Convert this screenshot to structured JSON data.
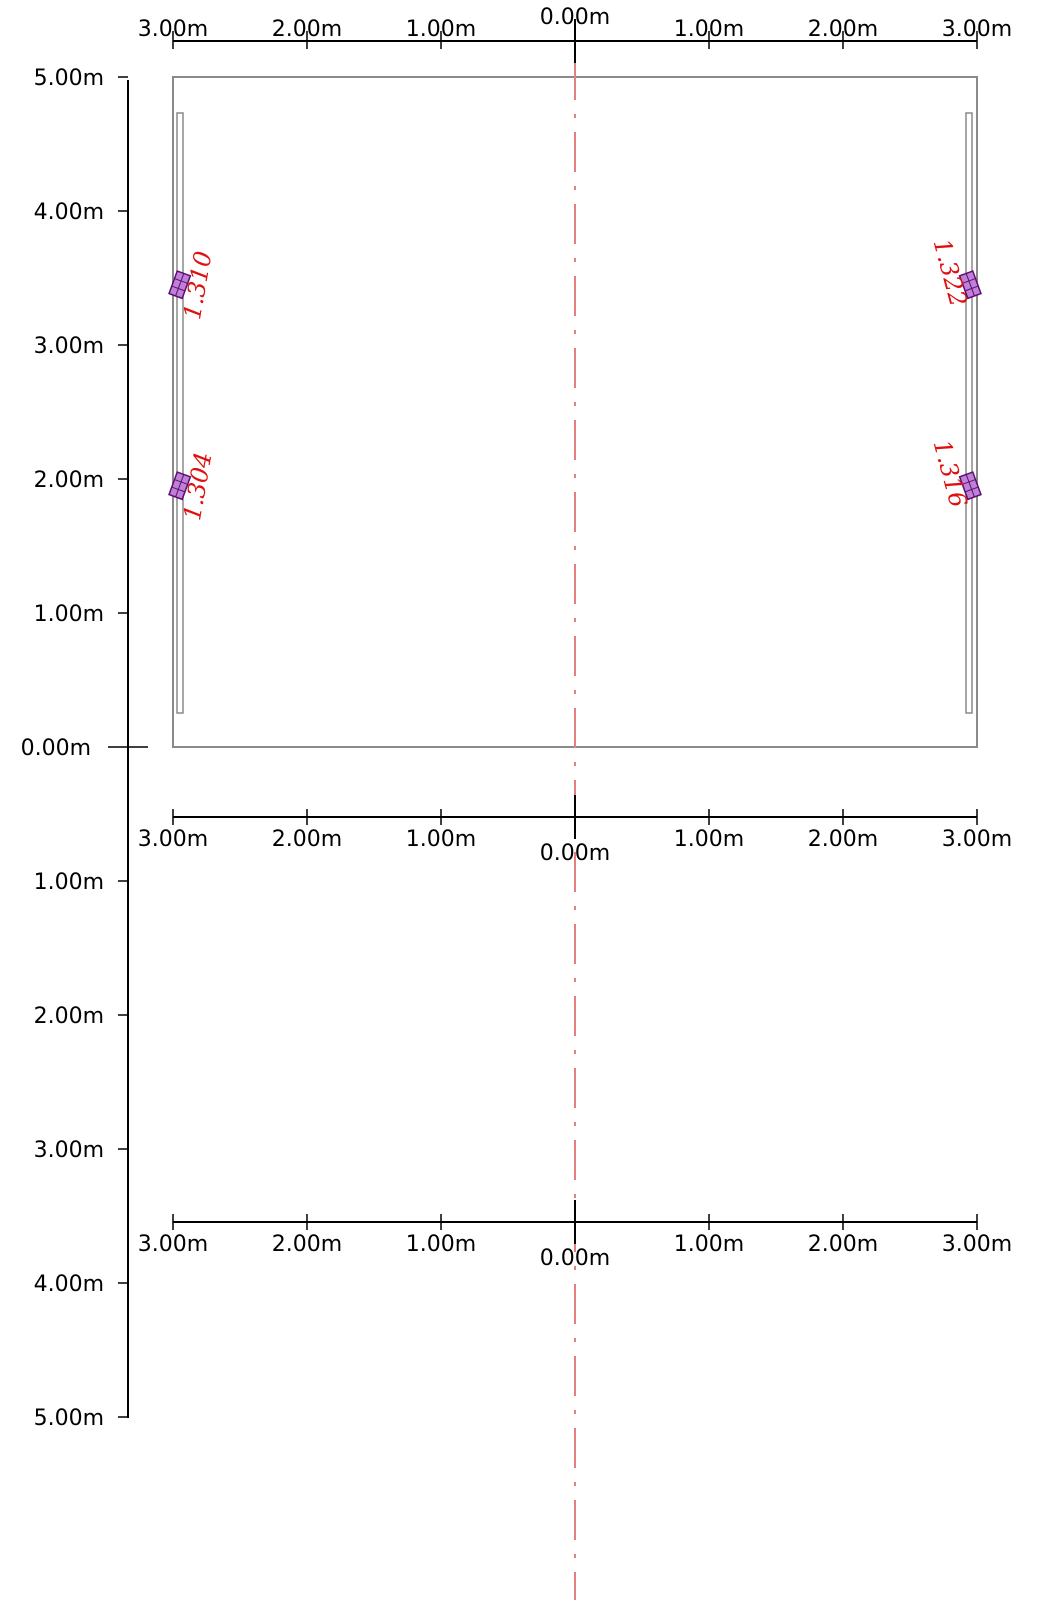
{
  "units": "m",
  "colors": {
    "axis": "#000000",
    "frame": "#8a8a8a",
    "centerline": "#e08080",
    "luminaire_fill": "#c080d8",
    "luminaire_stroke": "#5a1070",
    "value": "#e01010"
  },
  "rulers": [
    {
      "id": "top",
      "labels": [
        "3.00m",
        "2.00m",
        "1.00m",
        "0.00m",
        "1.00m",
        "2.00m",
        "3.00m"
      ]
    },
    {
      "id": "middle",
      "labels": [
        "3.00m",
        "2.00m",
        "1.00m",
        "0.00m",
        "1.00m",
        "2.00m",
        "3.00m"
      ]
    },
    {
      "id": "bottom",
      "labels": [
        "3.00m",
        "2.00m",
        "1.00m",
        "0.00m",
        "1.00m",
        "2.00m",
        "3.00m"
      ]
    }
  ],
  "vertical_ruler": {
    "upper_labels": [
      "5.00m",
      "4.00m",
      "3.00m",
      "2.00m",
      "1.00m",
      "0.00m"
    ],
    "lower_labels": [
      "1.00m",
      "2.00m",
      "3.00m",
      "4.00m",
      "5.00m"
    ]
  },
  "room": {
    "x_range": [
      -3,
      3
    ],
    "y_range": [
      0,
      5
    ]
  },
  "luminaires": [
    {
      "side": "left",
      "x": -2.95,
      "y": 3.45,
      "value": "1.310"
    },
    {
      "side": "left",
      "x": -2.95,
      "y": 1.95,
      "value": "1.304"
    },
    {
      "side": "right",
      "x": 2.95,
      "y": 3.45,
      "value": "1.322"
    },
    {
      "side": "right",
      "x": 2.95,
      "y": 1.95,
      "value": "1.316"
    }
  ]
}
